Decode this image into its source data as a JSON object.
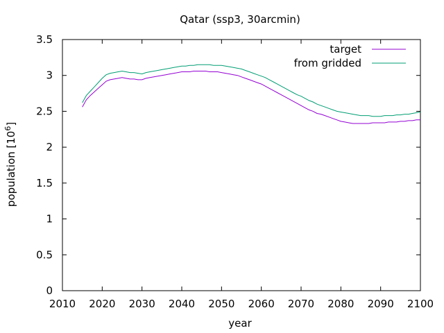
{
  "chart_data": {
    "type": "line",
    "title": "Qatar (ssp3, 30arcmin)",
    "xlabel": "year",
    "ylabel_base": "population [10",
    "ylabel_exp": "6",
    "ylabel_close": "]",
    "xlim": [
      2010,
      2100
    ],
    "ylim": [
      0,
      3.5
    ],
    "xticks": [
      2010,
      2020,
      2030,
      2040,
      2050,
      2060,
      2070,
      2080,
      2090,
      2100
    ],
    "yticks": [
      0,
      0.5,
      1,
      1.5,
      2,
      2.5,
      3,
      3.5
    ],
    "ytick_labels": [
      "0",
      "0.5",
      "1",
      "1.5",
      "2",
      "2.5",
      "3",
      "3.5"
    ],
    "grid": false,
    "legend_position": "top-right",
    "series": [
      {
        "name": "target",
        "color": "#9400d3",
        "x": [
          2015,
          2016,
          2017,
          2018,
          2019,
          2020,
          2021,
          2022,
          2023,
          2024,
          2025,
          2026,
          2027,
          2028,
          2029,
          2030,
          2031,
          2032,
          2033,
          2034,
          2035,
          2036,
          2037,
          2038,
          2039,
          2040,
          2041,
          2042,
          2043,
          2044,
          2045,
          2046,
          2047,
          2048,
          2049,
          2050,
          2051,
          2052,
          2053,
          2054,
          2055,
          2056,
          2057,
          2058,
          2059,
          2060,
          2061,
          2062,
          2063,
          2064,
          2065,
          2066,
          2067,
          2068,
          2069,
          2070,
          2071,
          2072,
          2073,
          2074,
          2075,
          2076,
          2077,
          2078,
          2079,
          2080,
          2081,
          2082,
          2083,
          2084,
          2085,
          2086,
          2087,
          2088,
          2089,
          2090,
          2091,
          2092,
          2093,
          2094,
          2095,
          2096,
          2097,
          2098,
          2099,
          2100
        ],
        "values": [
          2.56,
          2.66,
          2.72,
          2.77,
          2.82,
          2.87,
          2.92,
          2.94,
          2.95,
          2.96,
          2.97,
          2.96,
          2.95,
          2.95,
          2.94,
          2.94,
          2.96,
          2.97,
          2.98,
          2.99,
          3.0,
          3.01,
          3.02,
          3.03,
          3.04,
          3.05,
          3.05,
          3.05,
          3.06,
          3.06,
          3.06,
          3.06,
          3.05,
          3.05,
          3.05,
          3.04,
          3.03,
          3.02,
          3.01,
          3.0,
          2.98,
          2.96,
          2.94,
          2.92,
          2.9,
          2.88,
          2.85,
          2.82,
          2.79,
          2.76,
          2.73,
          2.7,
          2.67,
          2.64,
          2.61,
          2.58,
          2.55,
          2.52,
          2.5,
          2.47,
          2.46,
          2.44,
          2.42,
          2.4,
          2.38,
          2.36,
          2.35,
          2.34,
          2.33,
          2.33,
          2.33,
          2.33,
          2.33,
          2.34,
          2.34,
          2.34,
          2.34,
          2.35,
          2.35,
          2.35,
          2.36,
          2.36,
          2.37,
          2.37,
          2.38,
          2.38
        ]
      },
      {
        "name": "from gridded",
        "color": "#009e73",
        "x": [
          2015,
          2016,
          2017,
          2018,
          2019,
          2020,
          2021,
          2022,
          2023,
          2024,
          2025,
          2026,
          2027,
          2028,
          2029,
          2030,
          2031,
          2032,
          2033,
          2034,
          2035,
          2036,
          2037,
          2038,
          2039,
          2040,
          2041,
          2042,
          2043,
          2044,
          2045,
          2046,
          2047,
          2048,
          2049,
          2050,
          2051,
          2052,
          2053,
          2054,
          2055,
          2056,
          2057,
          2058,
          2059,
          2060,
          2061,
          2062,
          2063,
          2064,
          2065,
          2066,
          2067,
          2068,
          2069,
          2070,
          2071,
          2072,
          2073,
          2074,
          2075,
          2076,
          2077,
          2078,
          2079,
          2080,
          2081,
          2082,
          2083,
          2084,
          2085,
          2086,
          2087,
          2088,
          2089,
          2090,
          2091,
          2092,
          2093,
          2094,
          2095,
          2096,
          2097,
          2098,
          2099,
          2100
        ],
        "values": [
          2.62,
          2.72,
          2.78,
          2.84,
          2.9,
          2.96,
          3.01,
          3.03,
          3.04,
          3.05,
          3.06,
          3.05,
          3.04,
          3.04,
          3.03,
          3.02,
          3.04,
          3.05,
          3.06,
          3.07,
          3.08,
          3.09,
          3.1,
          3.11,
          3.12,
          3.13,
          3.13,
          3.14,
          3.14,
          3.15,
          3.15,
          3.15,
          3.15,
          3.14,
          3.14,
          3.14,
          3.13,
          3.12,
          3.11,
          3.1,
          3.09,
          3.07,
          3.05,
          3.03,
          3.01,
          2.99,
          2.97,
          2.94,
          2.91,
          2.88,
          2.85,
          2.82,
          2.79,
          2.76,
          2.73,
          2.71,
          2.68,
          2.65,
          2.63,
          2.6,
          2.58,
          2.56,
          2.54,
          2.52,
          2.5,
          2.49,
          2.48,
          2.47,
          2.46,
          2.45,
          2.44,
          2.44,
          2.44,
          2.43,
          2.43,
          2.43,
          2.44,
          2.44,
          2.44,
          2.45,
          2.45,
          2.46,
          2.46,
          2.47,
          2.48,
          2.49
        ]
      }
    ]
  }
}
